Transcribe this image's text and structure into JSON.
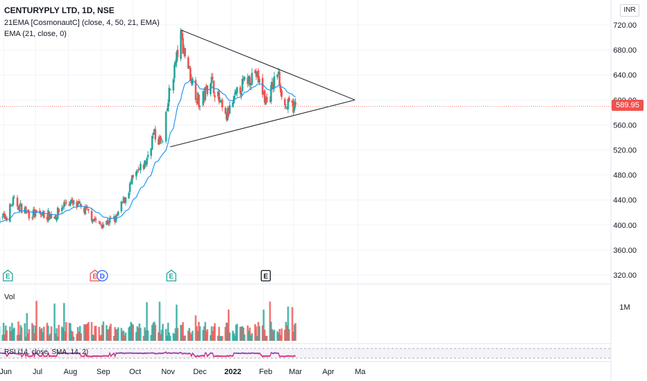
{
  "legend": {
    "title": "CENTURYPLY LTD, 1D, NSE",
    "line1": "21EMA [CosmonautC] (close, 4, 50, 21, EMA)",
    "line2": "EMA (21, close, 0)"
  },
  "currency": "INR",
  "last_price_label": "589.95",
  "volume_label": "Vol",
  "volume_tick": "1M",
  "rsi_label": "RSI (14, close, SMA, 14, 2)",
  "colors": {
    "up": "#26a69a",
    "down": "#ef5350",
    "ema": "#2196f3",
    "trend": "#131722",
    "rsi": "#7e57c2",
    "rsi_ma": "#e91e63"
  },
  "chart_data": {
    "type": "candlestick",
    "x_labels": [
      "Jun",
      "Jul",
      "Aug",
      "Sep",
      "Oct",
      "Nov",
      "Dec",
      "2022",
      "Feb",
      "Mar",
      "Apr",
      "Ma"
    ],
    "y_ticks": [
      320,
      360,
      400,
      440,
      480,
      520,
      560,
      600,
      640,
      680,
      720
    ],
    "ylim": [
      300,
      730
    ],
    "last_price": 589.95,
    "anchors": [
      {
        "date": "2021-05-26",
        "close": 405
      },
      {
        "date": "2021-06-04",
        "close": 415
      },
      {
        "date": "2021-06-10",
        "close": 438
      },
      {
        "date": "2021-06-25",
        "close": 418
      },
      {
        "date": "2021-07-20",
        "close": 415
      },
      {
        "date": "2021-07-30",
        "close": 438
      },
      {
        "date": "2021-08-10",
        "close": 430
      },
      {
        "date": "2021-08-20",
        "close": 420
      },
      {
        "date": "2021-08-30",
        "close": 400
      },
      {
        "date": "2021-09-15",
        "close": 410
      },
      {
        "date": "2021-09-30",
        "close": 470
      },
      {
        "date": "2021-10-13",
        "close": 500
      },
      {
        "date": "2021-10-20",
        "close": 545
      },
      {
        "date": "2021-10-29",
        "close": 530
      },
      {
        "date": "2021-11-04",
        "close": 610
      },
      {
        "date": "2021-11-15",
        "close": 700
      },
      {
        "date": "2021-11-24",
        "close": 640
      },
      {
        "date": "2021-12-03",
        "close": 590
      },
      {
        "date": "2021-12-13",
        "close": 635
      },
      {
        "date": "2021-12-27",
        "close": 570
      },
      {
        "date": "2022-01-10",
        "close": 620
      },
      {
        "date": "2022-01-24",
        "close": 645
      },
      {
        "date": "2022-02-04",
        "close": 595
      },
      {
        "date": "2022-02-14",
        "close": 645
      },
      {
        "date": "2022-02-21",
        "close": 590
      },
      {
        "date": "2022-03-03",
        "close": 590
      }
    ],
    "trendlines": [
      {
        "from": {
          "date": "2021-11-15",
          "price": 712
        },
        "to": {
          "date": "2022-04-28",
          "price": 600
        }
      },
      {
        "from": {
          "date": "2021-11-05",
          "price": 525
        },
        "to": {
          "date": "2022-04-28",
          "price": 600
        }
      }
    ],
    "events": [
      {
        "label": "E",
        "date": "2021-06-05",
        "kind": "up"
      },
      {
        "label": "E",
        "date": "2021-08-26",
        "kind": "down"
      },
      {
        "label": "D",
        "date": "2021-09-02",
        "kind": "dividend"
      },
      {
        "label": "E",
        "date": "2021-11-06",
        "kind": "up"
      },
      {
        "label": "E",
        "date": "2022-02-03",
        "kind": "neutral"
      }
    ]
  }
}
